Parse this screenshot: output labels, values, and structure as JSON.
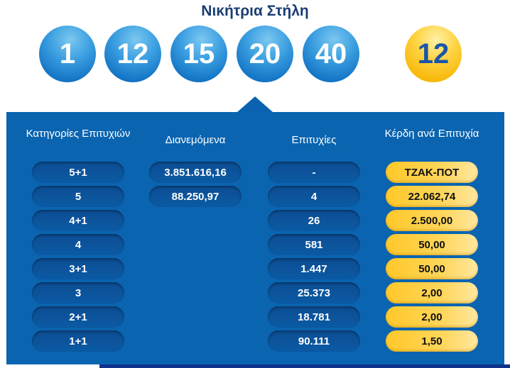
{
  "title": "Νικήτρια Στήλη",
  "numbers": [
    "1",
    "12",
    "15",
    "20",
    "40"
  ],
  "joker": "12",
  "headers": {
    "category": "Κατηγορίες Επιτυχιών",
    "distributed": "Διανεμόμενα",
    "winners": "Επιτυχίες",
    "prize": "Κέρδη ανά Επιτυχία"
  },
  "rows": [
    {
      "category": "5+1",
      "distributed": "3.851.616,16",
      "winners": "-",
      "prize": "ΤΖΑΚ-ΠΟΤ"
    },
    {
      "category": "5",
      "distributed": "88.250,97",
      "winners": "4",
      "prize": "22.062,74"
    },
    {
      "category": "4+1",
      "winners": "26",
      "prize": "2.500,00"
    },
    {
      "category": "4",
      "winners": "581",
      "prize": "50,00"
    },
    {
      "category": "3+1",
      "winners": "1.447",
      "prize": "50,00"
    },
    {
      "category": "3",
      "winners": "25.373",
      "prize": "2,00"
    },
    {
      "category": "2+1",
      "winners": "18.781",
      "prize": "2,00"
    },
    {
      "category": "1+1",
      "winners": "90.111",
      "prize": "1,50"
    }
  ]
}
